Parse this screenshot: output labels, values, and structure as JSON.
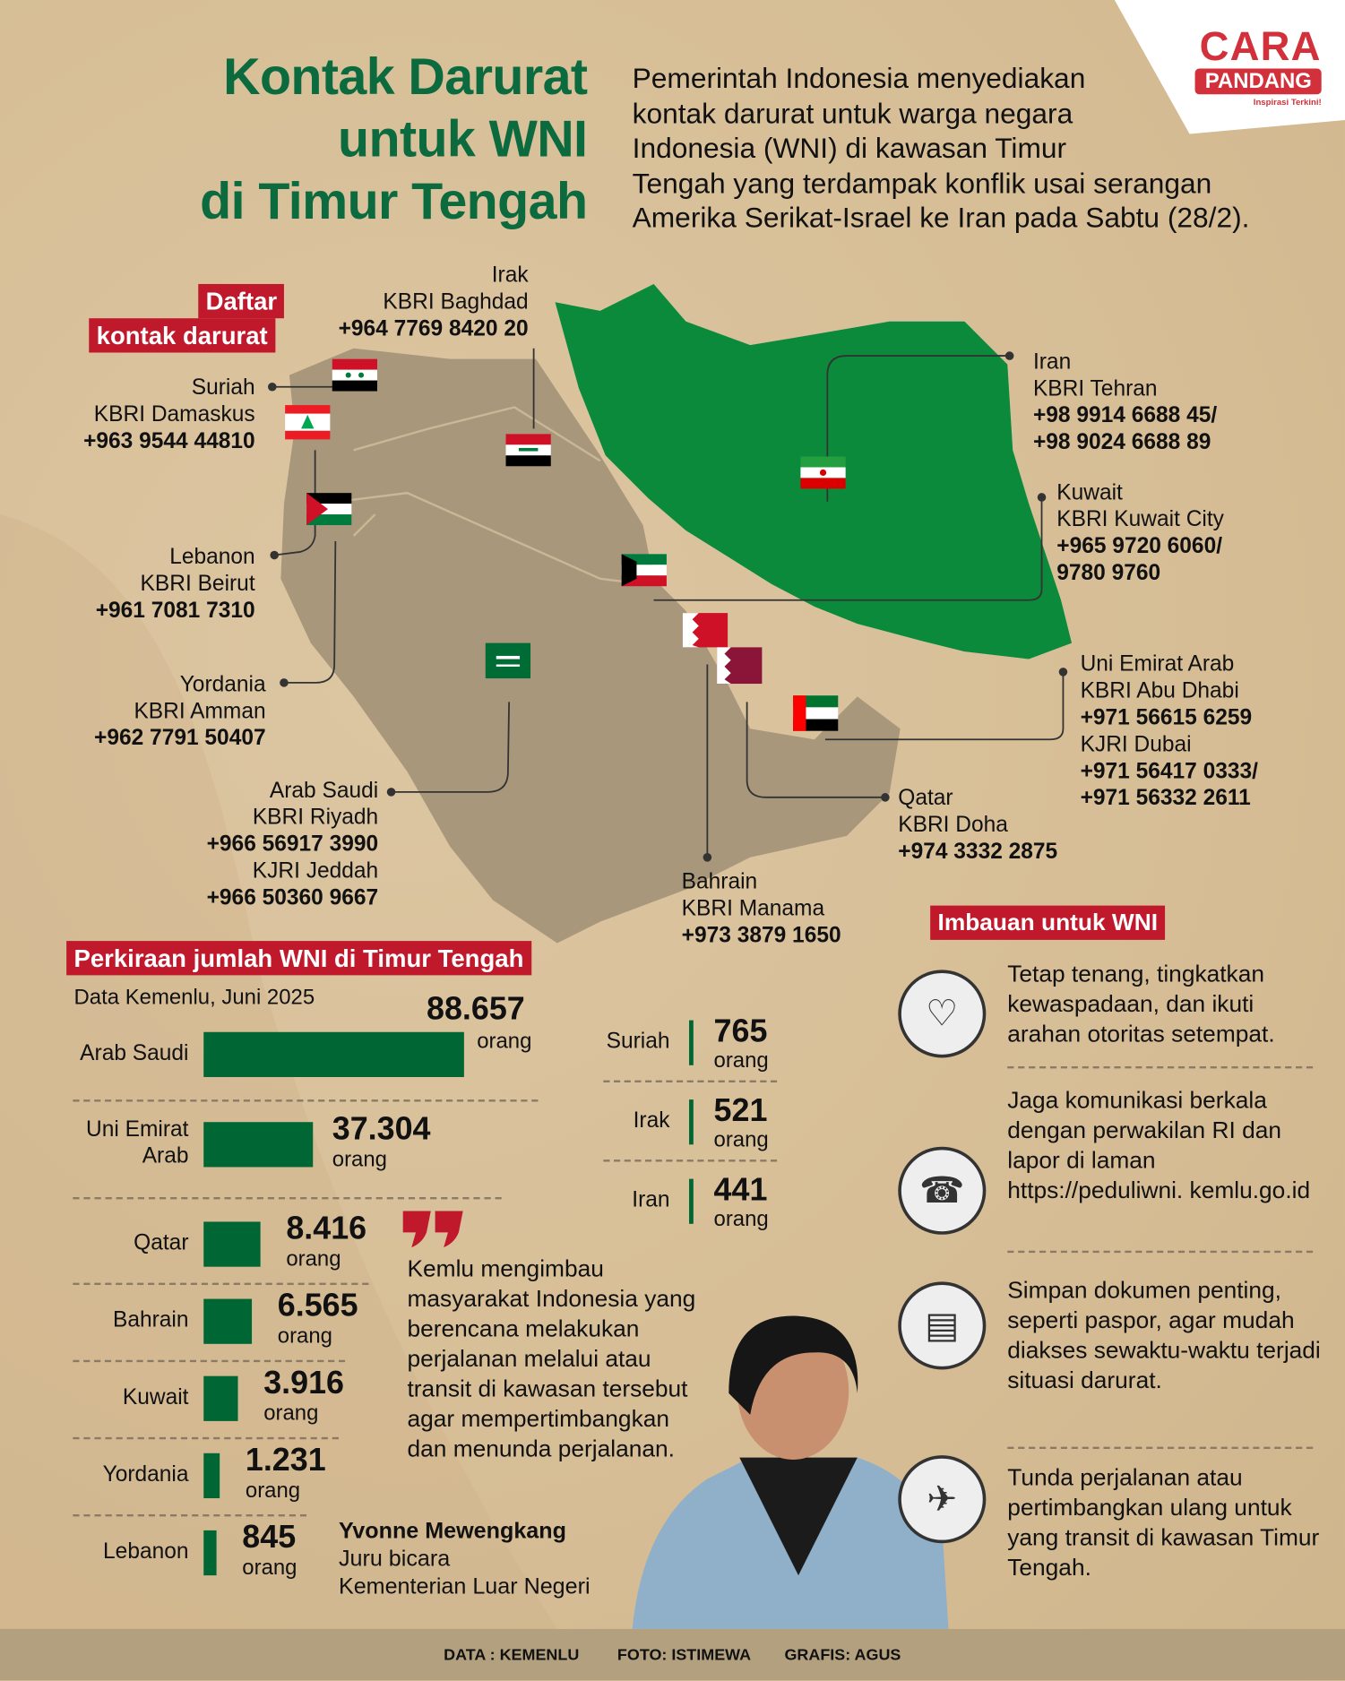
{
  "header": {
    "title_lines": [
      "Kontak Darurat",
      "untuk WNI",
      "di Timur Tengah"
    ],
    "intro": "Pemerintah Indonesia menyediakan kontak darurat untuk warga negara Indonesia (WNI) di kawasan Timur Tengah yang terdampak konflik usai serangan Amerika Serikat-Israel ke Iran pada Sabtu (28/2)."
  },
  "logo": {
    "line1": "CARA",
    "line2": "PANDANG",
    "tagline": "Inspirasi Terkini!",
    "color": "#d2303a"
  },
  "contacts_label": [
    "Daftar",
    "kontak darurat"
  ],
  "contacts": {
    "irak": [
      "Irak",
      "KBRI Baghdad",
      "+964 7769 8420 20"
    ],
    "suriah": [
      "Suriah",
      "KBRI Damaskus",
      "+963 9544 44810"
    ],
    "lebanon": [
      "Lebanon",
      "KBRI Beirut",
      "+961 7081 7310"
    ],
    "yordania": [
      "Yordania",
      "KBRI Amman",
      "+962 7791 50407"
    ],
    "arab_saudi": [
      "Arab Saudi",
      "KBRI Riyadh",
      "+966 56917 3990",
      "KJRI Jeddah",
      "+966 50360 9667"
    ],
    "bahrain": [
      "Bahrain",
      "KBRI Manama",
      "+973 3879 1650"
    ],
    "qatar": [
      "Qatar",
      "KBRI Doha",
      "+974 3332 2875"
    ],
    "uea": [
      "Uni Emirat Arab",
      "KBRI Abu Dhabi",
      "+971 56615 6259",
      "KJRI Dubai",
      "+971 56417 0333/",
      "+971 56332 2611"
    ],
    "kuwait": [
      "Kuwait",
      "KBRI Kuwait City",
      "+965 9720 6060/",
      "9780 9760"
    ],
    "iran": [
      "Iran",
      "KBRI Tehran",
      "+98 9914 6688 45/",
      "+98 9024 6688 89"
    ]
  },
  "map_colors": {
    "iran": "#0a8a3a",
    "region": "#a8977b"
  },
  "stats": {
    "title": "Perkiraan jumlah WNI di Timur Tengah",
    "source": "Data Kemenlu, Juni 2025",
    "unit": "orang"
  },
  "chart_data": {
    "type": "bar",
    "orientation": "horizontal",
    "source": "Data Kemenlu, Juni 2025",
    "categories": [
      "Arab Saudi",
      "Uni Emirat Arab",
      "Qatar",
      "Bahrain",
      "Kuwait",
      "Yordania",
      "Lebanon",
      "Suriah",
      "Irak",
      "Iran"
    ],
    "labels": [
      "88.657",
      "37.304",
      "8.416",
      "6.565",
      "3.916",
      "1.231",
      "845",
      "765",
      "521",
      "441"
    ],
    "values": [
      88657,
      37304,
      8416,
      6565,
      3916,
      1231,
      845,
      765,
      521,
      441
    ],
    "unit": "orang",
    "bar_color": "#006633"
  },
  "quote": {
    "text": "Kemlu mengimbau masyarakat Indonesia yang berencana melakukan perjalanan melalui atau transit di kawasan tersebut agar mempertimbangkan dan menunda perjalanan.",
    "name": "Yvonne Mewengkang",
    "role": "Juru bicara",
    "org": "Kementerian Luar Negeri"
  },
  "advice": {
    "title": "Imbauan untuk WNI",
    "items": [
      {
        "icon": "head-heart-icon",
        "text": "Tetap tenang, tingkatkan kewaspadaan, dan ikuti arahan otoritas setempat."
      },
      {
        "icon": "call-center-icon",
        "text": "Jaga komunikasi berkala dengan perwakilan RI dan lapor di laman https://peduliwni. kemlu.go.id"
      },
      {
        "icon": "document-cabinet-icon",
        "text": "Simpan dokumen penting, seperti paspor, agar mudah diakses sewaktu-waktu terjadi situasi darurat."
      },
      {
        "icon": "airplane-icon",
        "text": "Tunda perjalanan atau pertimbangkan ulang untuk yang transit di kawasan Timur Tengah."
      }
    ]
  },
  "footer": {
    "data": "DATA : KEMENLU",
    "foto": "FOTO: ISTIMEWA",
    "grafis": "GRAFIS: AGUS"
  },
  "accent": {
    "red": "#c0192c",
    "green": "#0b6b3e"
  }
}
